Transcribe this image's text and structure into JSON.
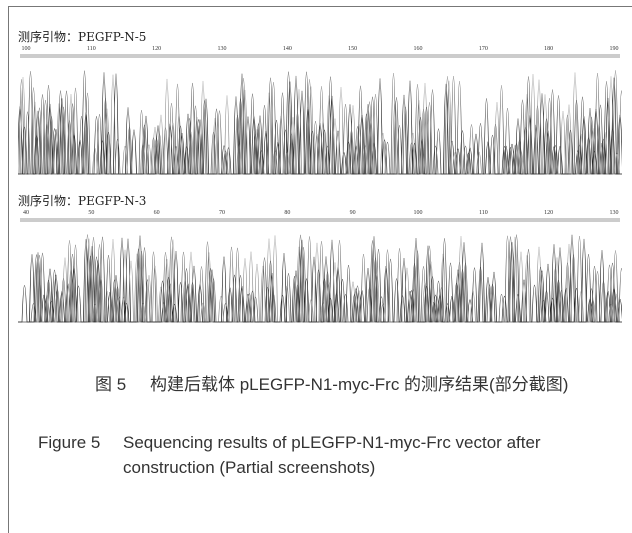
{
  "panels": [
    {
      "primer": "测序引物：PEGFP-N-5",
      "ruler": [
        100,
        110,
        120,
        130,
        140,
        150,
        160,
        170,
        180,
        190
      ]
    },
    {
      "primer": "测序引物：PEGFP-N-3",
      "ruler": [
        40,
        50,
        60,
        70,
        80,
        90,
        100,
        110,
        120,
        130
      ]
    }
  ],
  "caption_cn": {
    "label": "图 5",
    "text": "构建后载体 pLEGFP-N1-myc-Frc 的测序结果(部分截图)"
  },
  "caption_en": {
    "label": "Figure 5",
    "text": "Sequencing results of pLEGFP-N1-myc-Frc vector after construction (Partial screenshots)"
  }
}
